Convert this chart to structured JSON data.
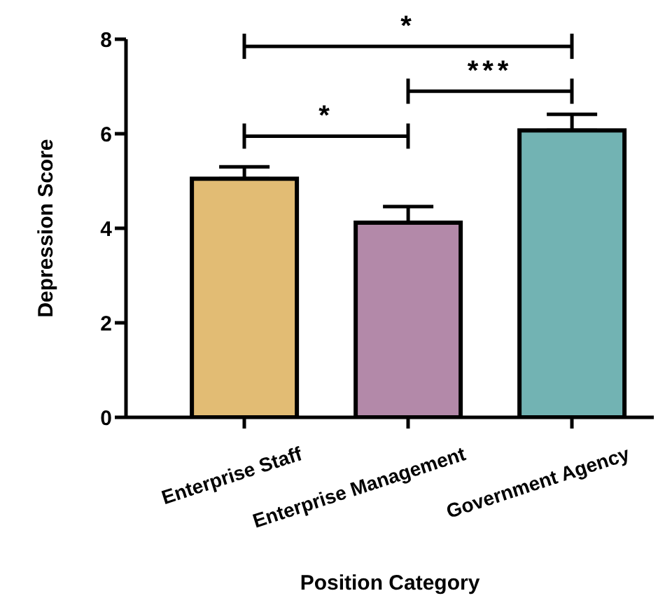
{
  "chart_data": {
    "type": "bar",
    "xlabel": "Position Category",
    "ylabel": "Depression Score",
    "categories": [
      "Enterprise Staff",
      "Enterprise Management",
      "Government Agency"
    ],
    "values": [
      5.05,
      4.12,
      6.07
    ],
    "colors": [
      "#e2bc74",
      "#b389a9",
      "#72b3b3"
    ],
    "errors": [
      0.25,
      0.34,
      0.34
    ],
    "ylim": [
      0,
      8
    ],
    "yticks": [
      0,
      2,
      4,
      6,
      8
    ],
    "grid": false,
    "annotations": [
      "*",
      "***",
      "*"
    ]
  }
}
